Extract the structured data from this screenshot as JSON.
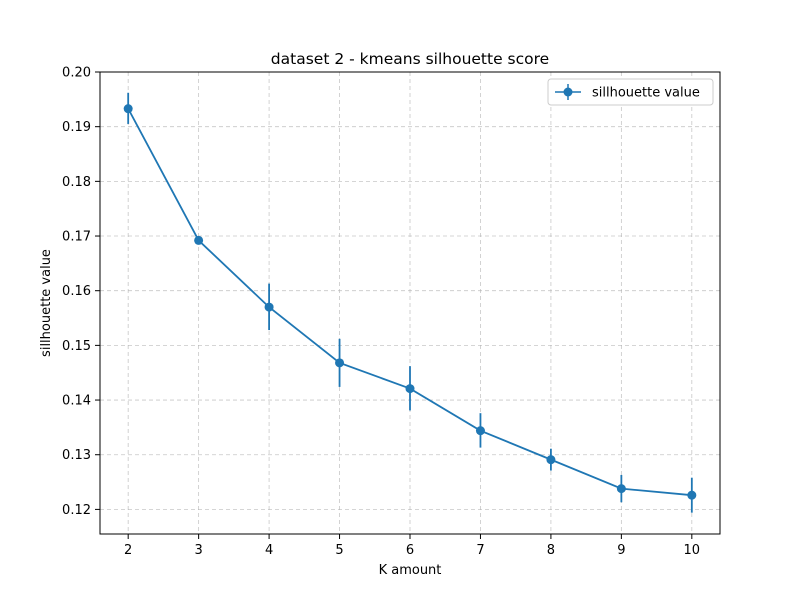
{
  "chart_data": {
    "type": "line",
    "title": "dataset 2 - kmeans silhouette score",
    "xlabel": "K amount",
    "ylabel": "sillhouette value",
    "x": [
      2,
      3,
      4,
      5,
      6,
      7,
      8,
      9,
      10
    ],
    "xlim": [
      1.6,
      10.4
    ],
    "ylim": [
      0.1155,
      0.2
    ],
    "xticks": [
      "2",
      "3",
      "4",
      "5",
      "6",
      "7",
      "8",
      "9",
      "10"
    ],
    "yticks": [
      "0.12",
      "0.13",
      "0.14",
      "0.15",
      "0.16",
      "0.17",
      "0.18",
      "0.19",
      "0.20"
    ],
    "grid": true,
    "legend_position": "top-right",
    "series": [
      {
        "name": "sillhouette value",
        "color": "#1f77b4",
        "marker": "circle",
        "values": [
          0.1933,
          0.1692,
          0.157,
          0.1468,
          0.1421,
          0.1344,
          0.1291,
          0.1238,
          0.1226
        ],
        "error_low": [
          0.1905,
          0.1688,
          0.1528,
          0.1424,
          0.1381,
          0.1313,
          0.1271,
          0.1213,
          0.1194
        ],
        "error_high": [
          0.1962,
          0.1696,
          0.1613,
          0.1512,
          0.1462,
          0.1376,
          0.1311,
          0.1263,
          0.1258
        ]
      }
    ]
  }
}
